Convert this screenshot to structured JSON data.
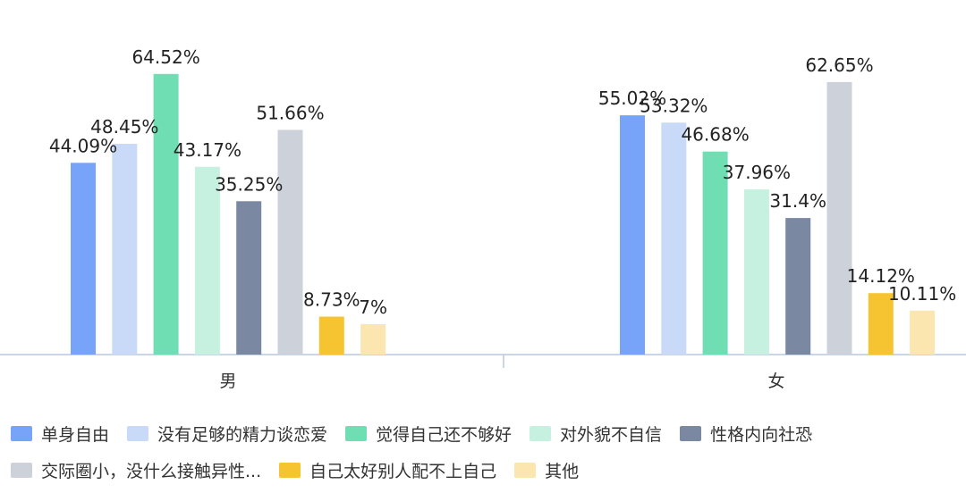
{
  "chart_data": {
    "type": "bar",
    "categories": [
      "男",
      "女"
    ],
    "series": [
      {
        "name": "单身自由",
        "color": "#77a4f8",
        "values": [
          44.09,
          55.02
        ],
        "labels": [
          "44.09%",
          "55.02%"
        ]
      },
      {
        "name": "没有足够的精力谈恋爱",
        "color": "#c9daf9",
        "values": [
          48.45,
          53.32
        ],
        "labels": [
          "48.45%",
          "53.32%"
        ]
      },
      {
        "name": "觉得自己还不够好",
        "color": "#6fdeb3",
        "values": [
          64.52,
          46.68
        ],
        "labels": [
          "64.52%",
          "46.68%"
        ]
      },
      {
        "name": "对外貌不自信",
        "color": "#c6f1e0",
        "values": [
          43.17,
          37.96
        ],
        "labels": [
          "43.17%",
          "37.96%"
        ]
      },
      {
        "name": "性格内向社恐",
        "color": "#7b88a2",
        "values": [
          35.25,
          31.4
        ],
        "labels": [
          "35.25%",
          "31.4%"
        ]
      },
      {
        "name": "交际圈小，没什么接触异性...",
        "color": "#cdd1da",
        "values": [
          51.66,
          62.65
        ],
        "labels": [
          "51.66%",
          "62.65%"
        ]
      },
      {
        "name": "自己太好别人配不上自己",
        "color": "#f6c431",
        "values": [
          8.73,
          14.12
        ],
        "labels": [
          "8.73%",
          "14.12%"
        ]
      },
      {
        "name": "其他",
        "color": "#fbe6b0",
        "values": [
          7,
          10.11
        ],
        "labels": [
          "7%",
          "10.11%"
        ]
      }
    ],
    "ylim": [
      0,
      70
    ],
    "grid": false,
    "legend_position": "bottom",
    "axis_color": "#b8c7e0"
  }
}
